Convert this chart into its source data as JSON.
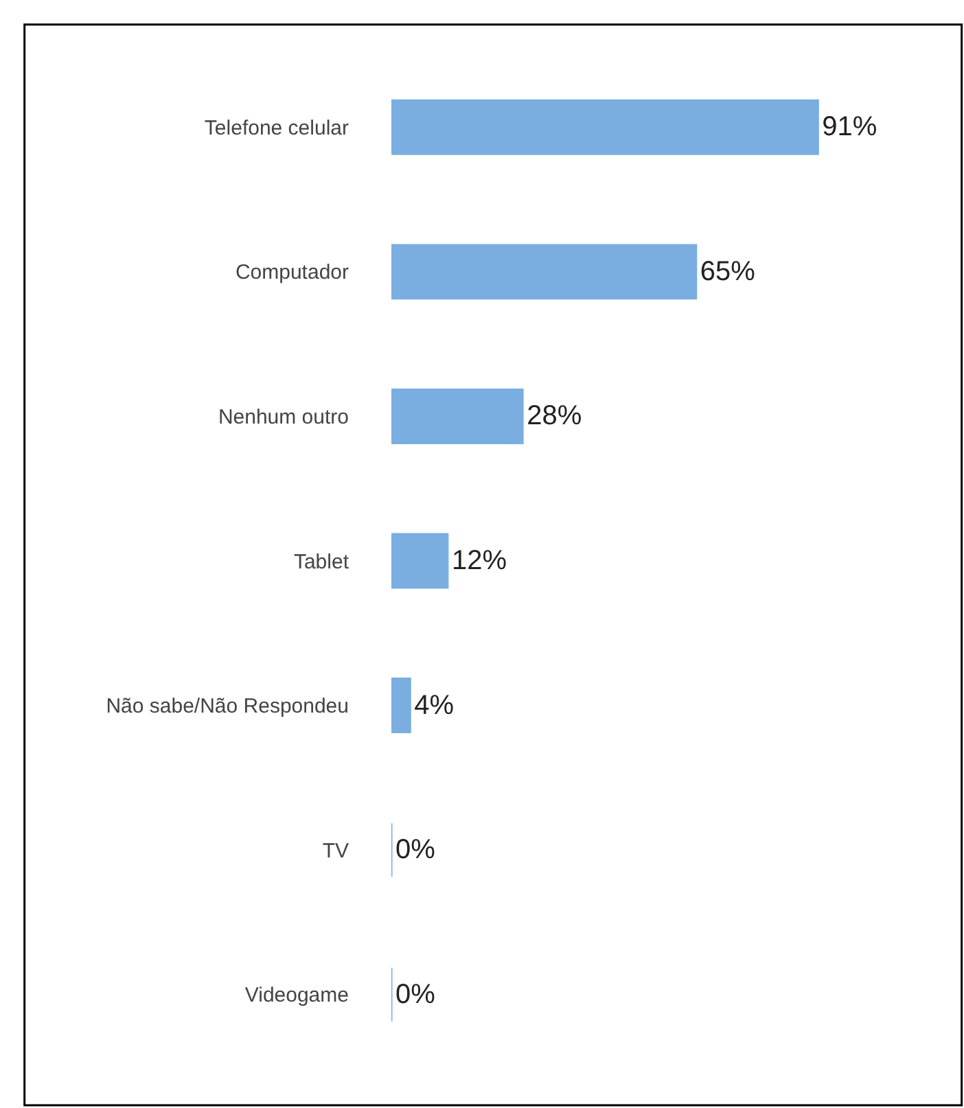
{
  "chart_data": {
    "type": "bar",
    "orientation": "horizontal",
    "categories": [
      "Telefone celular",
      "Computador",
      "Nenhum outro",
      "Tablet",
      "Não sabe/Não Respondeu",
      "TV",
      "Videogame"
    ],
    "values": [
      91,
      65,
      28,
      12,
      4,
      0,
      0
    ],
    "value_labels": [
      "91%",
      "65%",
      "28%",
      "12%",
      "4%",
      "0%",
      "0%"
    ],
    "color": "#7aaee0"
  }
}
